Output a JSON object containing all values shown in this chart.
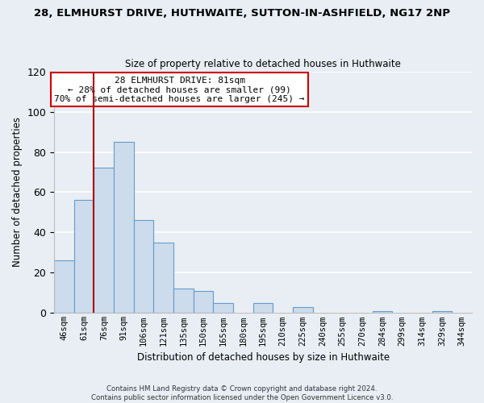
{
  "title": "28, ELMHURST DRIVE, HUTHWAITE, SUTTON-IN-ASHFIELD, NG17 2NP",
  "subtitle": "Size of property relative to detached houses in Huthwaite",
  "xlabel": "Distribution of detached houses by size in Huthwaite",
  "ylabel": "Number of detached properties",
  "bar_color": "#ccdcec",
  "bar_edge_color": "#6699cc",
  "categories": [
    "46sqm",
    "61sqm",
    "76sqm",
    "91sqm",
    "106sqm",
    "121sqm",
    "135sqm",
    "150sqm",
    "165sqm",
    "180sqm",
    "195sqm",
    "210sqm",
    "225sqm",
    "240sqm",
    "255sqm",
    "270sqm",
    "284sqm",
    "299sqm",
    "314sqm",
    "329sqm",
    "344sqm"
  ],
  "values": [
    26,
    56,
    72,
    85,
    46,
    35,
    12,
    11,
    5,
    0,
    5,
    0,
    3,
    0,
    0,
    0,
    1,
    0,
    0,
    1,
    0
  ],
  "ylim": [
    0,
    120
  ],
  "yticks": [
    0,
    20,
    40,
    60,
    80,
    100,
    120
  ],
  "vline_color": "#aa0000",
  "annotation_title": "28 ELMHURST DRIVE: 81sqm",
  "annotation_line1": "← 28% of detached houses are smaller (99)",
  "annotation_line2": "70% of semi-detached houses are larger (245) →",
  "annotation_box_color": "#ffffff",
  "annotation_box_edge": "#cc0000",
  "footer_line1": "Contains HM Land Registry data © Crown copyright and database right 2024.",
  "footer_line2": "Contains public sector information licensed under the Open Government Licence v3.0.",
  "background_color": "#e8eef4",
  "plot_background": "#e8eef4",
  "grid_color": "#ffffff"
}
